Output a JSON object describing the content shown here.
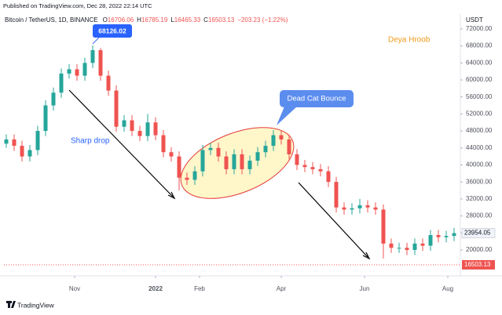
{
  "chart_data": {
    "type": "candlestick",
    "published": "Published on TradingView.com, Dec 28, 2022 22:14 UTC",
    "title": "Bitcoin / TetherUS, 1D, BINANCE",
    "ohlc": [
      {
        "label": "O",
        "value": 16706.06
      },
      {
        "label": "H",
        "value": 16785.19
      },
      {
        "label": "L",
        "value": 16465.33
      },
      {
        "label": "C",
        "value": 16503.13
      }
    ],
    "change": "−203.23 (−1.22%)",
    "currency": "USDT",
    "brand": "TradingView",
    "author": "Deya Hroob",
    "annotations": [
      "Sharp drop",
      "Dead Cat Bounce"
    ],
    "up_color": "#26a69a",
    "down_color": "#ef5350",
    "grid": false,
    "candles": {
      "open": [
        45000,
        46000,
        44500,
        42000,
        43500,
        48000,
        54000,
        57000,
        61500,
        62500,
        61000,
        64000,
        67000,
        61000,
        57500,
        49000,
        50500,
        48000,
        46800,
        50000,
        47000,
        43000,
        42000,
        37000,
        36500,
        38500,
        43500,
        44000,
        42000,
        39000,
        42500,
        39000,
        41000,
        43000,
        44500,
        47000,
        46000,
        42500,
        40000,
        39500,
        39000,
        38500,
        36000,
        30000,
        29500,
        29800,
        30500,
        30000,
        29500,
        21500,
        20500,
        20500,
        20000,
        21500,
        21000,
        23500,
        23000,
        23300
      ],
      "high": [
        47200,
        47200,
        45700,
        44700,
        49200,
        55200,
        58200,
        62700,
        63700,
        63700,
        65200,
        68126.02,
        67500,
        62200,
        58700,
        51700,
        51700,
        49200,
        52000,
        51200,
        48200,
        44200,
        43200,
        38200,
        39700,
        44700,
        45200,
        45200,
        43200,
        43700,
        43700,
        42200,
        44200,
        45700,
        48200,
        48200,
        47200,
        43700,
        41200,
        40700,
        40200,
        39700,
        37200,
        31200,
        31000,
        32000,
        31700,
        31200,
        30700,
        22700,
        21700,
        21700,
        22700,
        22700,
        24700,
        24700,
        24500,
        25200
      ],
      "low": [
        44000,
        43300,
        40800,
        40800,
        42300,
        46800,
        52800,
        55800,
        60300,
        59800,
        59800,
        62800,
        59800,
        56300,
        47800,
        47800,
        46800,
        45600,
        45600,
        45800,
        41800,
        40800,
        34000,
        35300,
        35300,
        37300,
        42300,
        40800,
        37800,
        37800,
        37800,
        37800,
        39800,
        41800,
        43300,
        44800,
        41300,
        38800,
        38300,
        37800,
        37300,
        34800,
        28800,
        28300,
        28300,
        28600,
        28800,
        28300,
        18000,
        19300,
        19300,
        18800,
        18800,
        19800,
        19800,
        21800,
        21800,
        22100
      ],
      "close": [
        46000,
        44500,
        42000,
        43500,
        48000,
        54000,
        57000,
        61500,
        62500,
        61000,
        64000,
        67000,
        61000,
        57500,
        49000,
        50500,
        48000,
        46800,
        50000,
        47000,
        43000,
        42000,
        37000,
        36500,
        38500,
        43500,
        44000,
        42000,
        39000,
        42500,
        39000,
        41000,
        43000,
        44500,
        47000,
        46000,
        42500,
        40000,
        39500,
        39000,
        38500,
        36000,
        30000,
        29500,
        29800,
        30500,
        30000,
        29500,
        21500,
        20500,
        20500,
        20000,
        21500,
        21000,
        23500,
        23000,
        23300,
        23954.05
      ]
    },
    "xlim": [
      -0.3,
      57.7
    ],
    "xticks": [
      {
        "value": 8.7,
        "label": "Nov"
      },
      {
        "value": 19,
        "label": "2022"
      },
      {
        "value": 24.6,
        "label": "Feb"
      },
      {
        "value": 35,
        "label": "Apr"
      },
      {
        "value": 45.6,
        "label": "Jun"
      },
      {
        "value": 56.2,
        "label": "Aug"
      }
    ],
    "ylim": [
      14650,
      74750
    ],
    "yticks": [
      {
        "value": 20000,
        "label": "20000.00"
      },
      {
        "value": 24000,
        "label": "24000.00"
      },
      {
        "value": 28000,
        "label": "28000.00"
      },
      {
        "value": 32000,
        "label": "32000.00"
      },
      {
        "value": 36000,
        "label": "36000.00"
      },
      {
        "value": 40000,
        "label": "40000.00"
      },
      {
        "value": 44000,
        "label": "44000.00"
      },
      {
        "value": 48000,
        "label": "48000.00"
      },
      {
        "value": 52000,
        "label": "52000.00"
      },
      {
        "value": 56000,
        "label": "56000.00"
      },
      {
        "value": 60000,
        "label": "60000.00"
      },
      {
        "value": 64000,
        "label": "64000.00"
      },
      {
        "value": 68000,
        "label": "68000.00"
      },
      {
        "value": 72000,
        "label": "72000.00"
      }
    ]
  }
}
